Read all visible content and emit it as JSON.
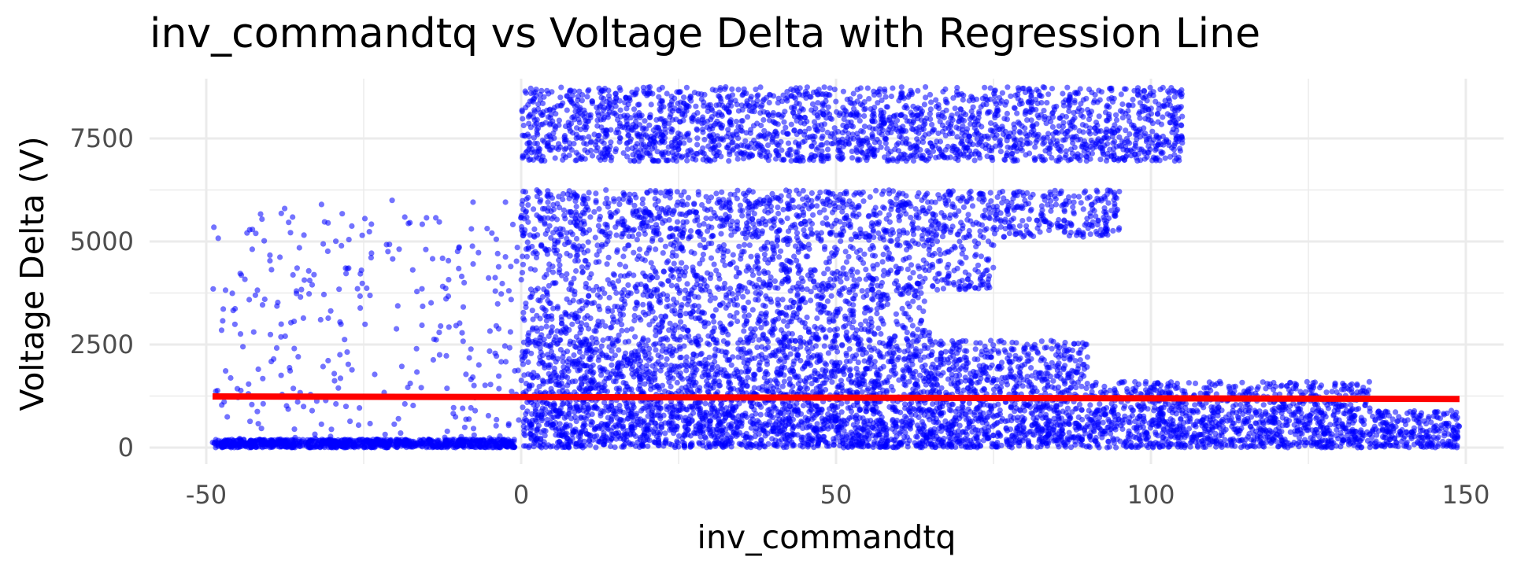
{
  "chart_data": {
    "type": "scatter",
    "title": "inv_commandtq  vs Voltage Delta with Regression Line",
    "xlabel": "inv_commandtq",
    "ylabel": "Voltage Delta (V)",
    "xlim": [
      -59,
      156
    ],
    "ylim": [
      -400,
      8950
    ],
    "x_ticks": [
      -50,
      0,
      50,
      100,
      150
    ],
    "x_tick_labels": [
      "-50",
      "0",
      "50",
      "100",
      "150"
    ],
    "y_ticks": [
      0,
      2500,
      5000,
      7500
    ],
    "y_tick_labels": [
      "0",
      "2500",
      "5000",
      "7500"
    ],
    "x_minor_ticks": [
      -25,
      25,
      75,
      125
    ],
    "y_minor_ticks": [
      1250,
      3750,
      6250
    ],
    "grid": true,
    "legend": "none",
    "colors": {
      "points": "#0000ff",
      "regression": "#ff0000"
    },
    "point_clusters": [
      {
        "x": [
          0,
          105
        ],
        "y": [
          6950,
          8750
        ]
      },
      {
        "x": [
          0,
          95
        ],
        "y": [
          5100,
          6250
        ]
      },
      {
        "x": [
          0,
          75
        ],
        "y": [
          3800,
          5100
        ]
      },
      {
        "x": [
          0,
          65
        ],
        "y": [
          2600,
          3800
        ]
      },
      {
        "x": [
          0,
          90
        ],
        "y": [
          1600,
          2600
        ]
      },
      {
        "x": [
          0,
          135
        ],
        "y": [
          900,
          1600
        ]
      },
      {
        "x": [
          0,
          149
        ],
        "y": [
          0,
          900
        ]
      },
      {
        "x": [
          -49,
          -1
        ],
        "y": [
          0,
          200
        ]
      },
      {
        "x": [
          -49,
          0
        ],
        "y": [
          0,
          6000
        ]
      }
    ],
    "regression_line": {
      "x": [
        -49,
        149
      ],
      "y": [
        1240,
        1180
      ]
    }
  }
}
